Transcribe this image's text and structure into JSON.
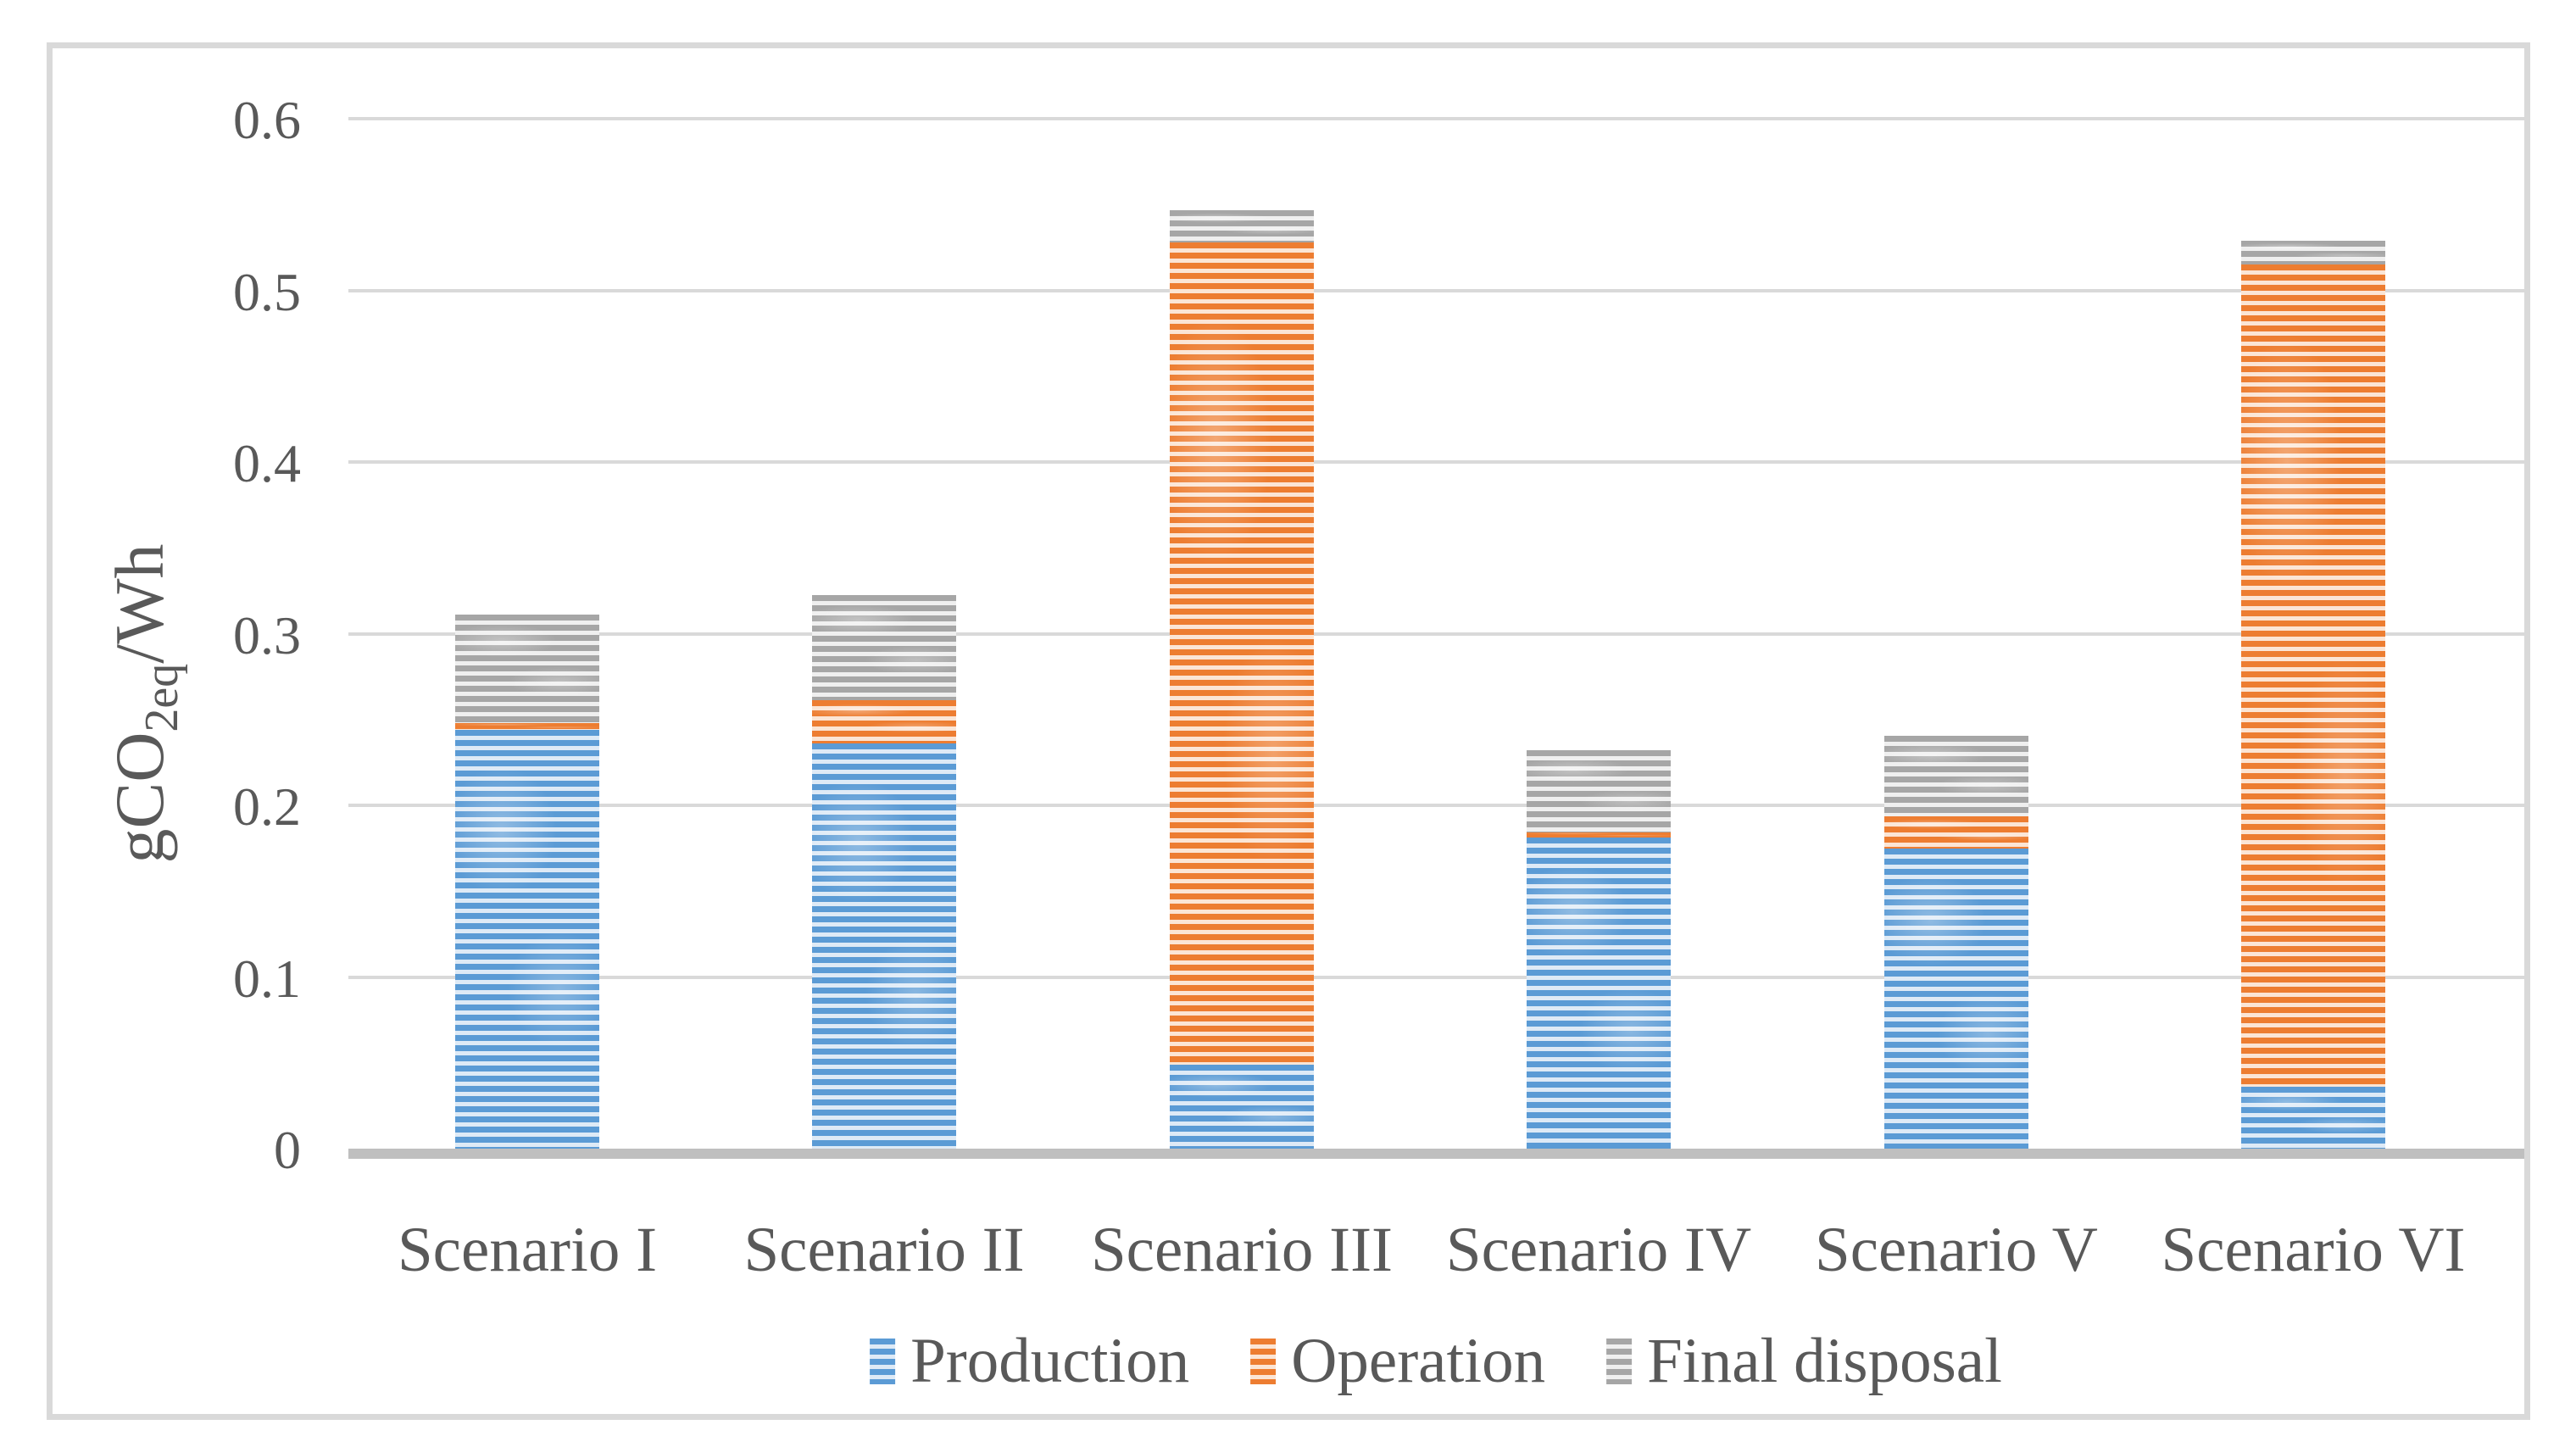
{
  "figure": {
    "y_axis_title": {
      "prefix": "gCO",
      "sub": "2eq",
      "suffix": "/Wh"
    }
  },
  "chart_data": {
    "type": "bar",
    "stacked": true,
    "title": "",
    "ylabel": "gCO2eq/Wh",
    "xlabel": "",
    "categories": [
      "Scenario I",
      "Scenario II",
      "Scenario III",
      "Scenario IV",
      "Scenario V",
      "Scenario VI"
    ],
    "series": [
      {
        "name": "Production",
        "color": "#5B9BD5",
        "color_light": "#DEEAF6",
        "values": [
          0.244,
          0.236,
          0.049,
          0.181,
          0.175,
          0.036
        ]
      },
      {
        "name": "Operation",
        "color": "#ED7D31",
        "color_light": "#FBE5D5",
        "values": [
          0.004,
          0.025,
          0.479,
          0.003,
          0.019,
          0.479
        ]
      },
      {
        "name": "Final disposal",
        "color": "#A6A6A6",
        "color_light": "#EFEFEF",
        "values": [
          0.063,
          0.061,
          0.019,
          0.048,
          0.047,
          0.014
        ]
      }
    ],
    "totals": null,
    "ylim": [
      0,
      0.6
    ],
    "yticks": [
      0,
      0.1,
      0.2,
      0.3,
      0.4,
      0.5,
      0.6
    ],
    "grid": true,
    "pattern": "horizontal-stripes",
    "legend_position": "bottom",
    "colors": {
      "gridline": "#D9D9D9",
      "axis_line": "#BFBFBF",
      "frame_border": "#D9D9D9",
      "text": "#595959",
      "background": "#FFFFFF"
    }
  }
}
